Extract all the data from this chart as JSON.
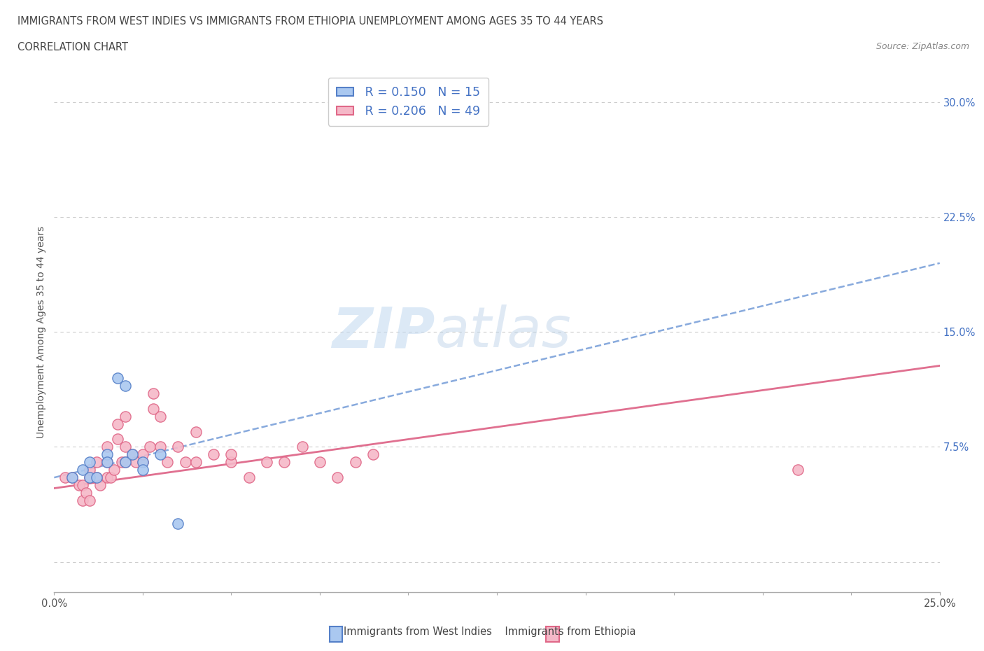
{
  "title_line1": "IMMIGRANTS FROM WEST INDIES VS IMMIGRANTS FROM ETHIOPIA UNEMPLOYMENT AMONG AGES 35 TO 44 YEARS",
  "title_line2": "CORRELATION CHART",
  "source_text": "Source: ZipAtlas.com",
  "ylabel": "Unemployment Among Ages 35 to 44 years",
  "xlim": [
    0.0,
    0.25
  ],
  "ylim": [
    -0.02,
    0.32
  ],
  "yticks": [
    0.0,
    0.075,
    0.15,
    0.225,
    0.3
  ],
  "yticklabels": [
    "",
    "7.5%",
    "15.0%",
    "22.5%",
    "30.0%"
  ],
  "xtick_left_label": "0.0%",
  "xtick_right_label": "25.0%",
  "watermark_zip": "ZIP",
  "watermark_atlas": "atlas",
  "legend_r1": "R = 0.150",
  "legend_n1": "N = 15",
  "legend_r2": "R = 0.206",
  "legend_n2": "N = 49",
  "legend_label1": "Immigrants from West Indies",
  "legend_label2": "Immigrants from Ethiopia",
  "color_blue_fill": "#aac8f0",
  "color_blue_edge": "#5580c8",
  "color_pink_fill": "#f5b8c8",
  "color_pink_edge": "#e06888",
  "color_blue_trendline": "#88aadd",
  "color_pink_trendline": "#e07090",
  "color_yaxis": "#4472c4",
  "color_text_title": "#444444",
  "color_source": "#888888",
  "color_legend_text": "#4472c4",
  "color_grid": "#cccccc",
  "scatter_blue_x": [
    0.005,
    0.008,
    0.01,
    0.01,
    0.012,
    0.015,
    0.015,
    0.018,
    0.02,
    0.02,
    0.022,
    0.025,
    0.025,
    0.03,
    0.035
  ],
  "scatter_blue_y": [
    0.055,
    0.06,
    0.065,
    0.055,
    0.055,
    0.07,
    0.065,
    0.12,
    0.115,
    0.065,
    0.07,
    0.065,
    0.06,
    0.07,
    0.025
  ],
  "scatter_pink_x": [
    0.003,
    0.005,
    0.007,
    0.008,
    0.008,
    0.009,
    0.01,
    0.01,
    0.01,
    0.012,
    0.012,
    0.013,
    0.015,
    0.015,
    0.015,
    0.016,
    0.017,
    0.018,
    0.018,
    0.019,
    0.02,
    0.02,
    0.02,
    0.022,
    0.023,
    0.025,
    0.025,
    0.027,
    0.028,
    0.028,
    0.03,
    0.03,
    0.032,
    0.035,
    0.037,
    0.04,
    0.04,
    0.045,
    0.05,
    0.05,
    0.055,
    0.06,
    0.065,
    0.07,
    0.075,
    0.08,
    0.085,
    0.09,
    0.21
  ],
  "scatter_pink_y": [
    0.055,
    0.055,
    0.05,
    0.04,
    0.05,
    0.045,
    0.055,
    0.04,
    0.06,
    0.055,
    0.065,
    0.05,
    0.055,
    0.065,
    0.075,
    0.055,
    0.06,
    0.08,
    0.09,
    0.065,
    0.065,
    0.075,
    0.095,
    0.07,
    0.065,
    0.065,
    0.07,
    0.075,
    0.1,
    0.11,
    0.075,
    0.095,
    0.065,
    0.075,
    0.065,
    0.065,
    0.085,
    0.07,
    0.065,
    0.07,
    0.055,
    0.065,
    0.065,
    0.075,
    0.065,
    0.055,
    0.065,
    0.07,
    0.06
  ],
  "trendline_blue_x0": 0.0,
  "trendline_blue_y0": 0.055,
  "trendline_blue_x1": 0.25,
  "trendline_blue_y1": 0.195,
  "trendline_pink_x0": 0.0,
  "trendline_pink_y0": 0.048,
  "trendline_pink_x1": 0.25,
  "trendline_pink_y1": 0.128,
  "bg_color": "#ffffff"
}
